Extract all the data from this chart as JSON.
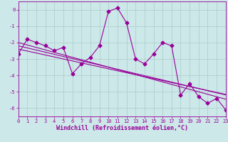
{
  "xlabel": "Windchill (Refroidissement éolien,°C)",
  "ylabel": "",
  "bg_color": "#cce8e8",
  "grid_color": "#aacccc",
  "line_color": "#990099",
  "marker_color": "#990099",
  "x_data": [
    0,
    1,
    2,
    3,
    4,
    5,
    6,
    7,
    8,
    9,
    10,
    11,
    12,
    13,
    14,
    15,
    16,
    17,
    18,
    19,
    20,
    21,
    22,
    23
  ],
  "y_main": [
    -2.7,
    -1.8,
    -2.0,
    -2.2,
    -2.5,
    -2.3,
    -3.9,
    -3.3,
    -2.9,
    -2.2,
    -0.1,
    0.1,
    -0.8,
    -3.0,
    -3.3,
    -2.7,
    -2.0,
    -2.2,
    -5.2,
    -4.5,
    -5.3,
    -5.7,
    -5.4,
    -6.1
  ],
  "y_trend1": [
    -2.0,
    -2.15,
    -2.3,
    -2.45,
    -2.6,
    -2.75,
    -2.9,
    -3.05,
    -3.2,
    -3.35,
    -3.5,
    -3.65,
    -3.8,
    -3.95,
    -4.1,
    -4.25,
    -4.4,
    -4.55,
    -4.7,
    -4.85,
    -5.0,
    -5.15,
    -5.3,
    -5.45
  ],
  "y_trend2": [
    -2.2,
    -2.33,
    -2.46,
    -2.59,
    -2.72,
    -2.85,
    -2.98,
    -3.11,
    -3.24,
    -3.37,
    -3.5,
    -3.63,
    -3.76,
    -3.89,
    -4.02,
    -4.15,
    -4.28,
    -4.41,
    -4.54,
    -4.67,
    -4.8,
    -4.93,
    -5.06,
    -5.19
  ],
  "y_trend3": [
    -2.4,
    -2.52,
    -2.64,
    -2.76,
    -2.88,
    -3.0,
    -3.12,
    -3.24,
    -3.36,
    -3.48,
    -3.6,
    -3.72,
    -3.84,
    -3.96,
    -4.08,
    -4.2,
    -4.32,
    -4.44,
    -4.56,
    -4.68,
    -4.8,
    -4.92,
    -5.04,
    -5.16
  ],
  "xlim": [
    0,
    23
  ],
  "ylim": [
    -6.5,
    0.5
  ],
  "xticks": [
    0,
    1,
    2,
    3,
    4,
    5,
    6,
    7,
    8,
    9,
    10,
    11,
    12,
    13,
    14,
    15,
    16,
    17,
    18,
    19,
    20,
    21,
    22,
    23
  ],
  "yticks": [
    0,
    -1,
    -2,
    -3,
    -4,
    -5,
    -6
  ],
  "tick_fontsize": 5.0,
  "xlabel_fontsize": 6.0,
  "line_width": 0.8,
  "marker_size": 2.5
}
